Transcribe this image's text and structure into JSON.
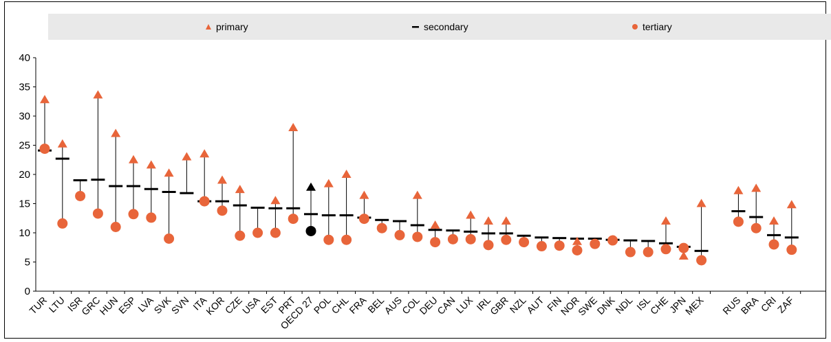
{
  "chart_data": {
    "type": "scatter",
    "title": "",
    "xlabel": "",
    "ylabel": "",
    "ylim": [
      0,
      40
    ],
    "yticks": [
      0,
      5,
      10,
      15,
      20,
      25,
      30,
      35,
      40
    ],
    "grid": false,
    "legend_position": "top",
    "series": [
      {
        "name": "primary",
        "marker": "triangle",
        "color": "#e8653a"
      },
      {
        "name": "secondary",
        "marker": "dash",
        "color": "#000000"
      },
      {
        "name": "tertiary",
        "marker": "circle",
        "color": "#e8653a"
      }
    ],
    "categories": [
      "TUR",
      "LTU",
      "ISR",
      "GRC",
      "HUN",
      "ESP",
      "LVA",
      "SVK",
      "SVN",
      "ITA",
      "KOR",
      "CZE",
      "USA",
      "EST",
      "PRT",
      "OECD 27",
      "POL",
      "CHL",
      "FRA",
      "BEL",
      "AUS",
      "COL",
      "DEU",
      "CAN",
      "LUX",
      "IRL",
      "GBR",
      "NZL",
      "AUT",
      "FIN",
      "NOR",
      "SWE",
      "DNK",
      "NDL",
      "ISL",
      "CHE",
      "JPN",
      "MEX",
      "RUS",
      "BRA",
      "CRI",
      "ZAF"
    ],
    "primary": [
      32.8,
      25.2,
      null,
      33.6,
      27.0,
      22.5,
      21.6,
      20.2,
      23.0,
      23.5,
      19.0,
      17.4,
      null,
      15.5,
      28.0,
      17.8,
      18.4,
      20.0,
      16.4,
      null,
      null,
      16.4,
      11.3,
      null,
      13.0,
      12.0,
      12.0,
      null,
      null,
      null,
      8.5,
      null,
      null,
      null,
      null,
      12.0,
      6.0,
      15.0,
      17.2,
      17.6,
      12.0,
      14.8
    ],
    "secondary": [
      24.1,
      22.7,
      19.0,
      19.1,
      18.0,
      18.0,
      17.5,
      17.0,
      16.8,
      15.4,
      15.4,
      14.7,
      14.3,
      14.2,
      14.2,
      13.2,
      13.0,
      13.0,
      12.6,
      12.2,
      12.0,
      11.3,
      10.5,
      10.4,
      10.2,
      9.9,
      9.9,
      9.5,
      9.2,
      9.1,
      9.0,
      9.0,
      8.8,
      8.7,
      8.6,
      8.2,
      7.6,
      6.9,
      13.7,
      12.7,
      9.6,
      9.2
    ],
    "tertiary": [
      24.4,
      11.6,
      16.3,
      13.3,
      11.0,
      13.2,
      12.6,
      9.0,
      null,
      15.4,
      13.8,
      9.5,
      10.0,
      10.0,
      12.4,
      10.3,
      8.8,
      8.8,
      12.4,
      10.8,
      9.6,
      9.3,
      8.4,
      8.9,
      8.9,
      7.9,
      8.8,
      8.4,
      7.7,
      7.8,
      7.0,
      8.1,
      8.7,
      6.7,
      6.7,
      7.2,
      7.4,
      5.3,
      11.9,
      10.8,
      8.0,
      7.1
    ],
    "highlight_category": "OECD 27",
    "highlight_color": "#000000"
  }
}
